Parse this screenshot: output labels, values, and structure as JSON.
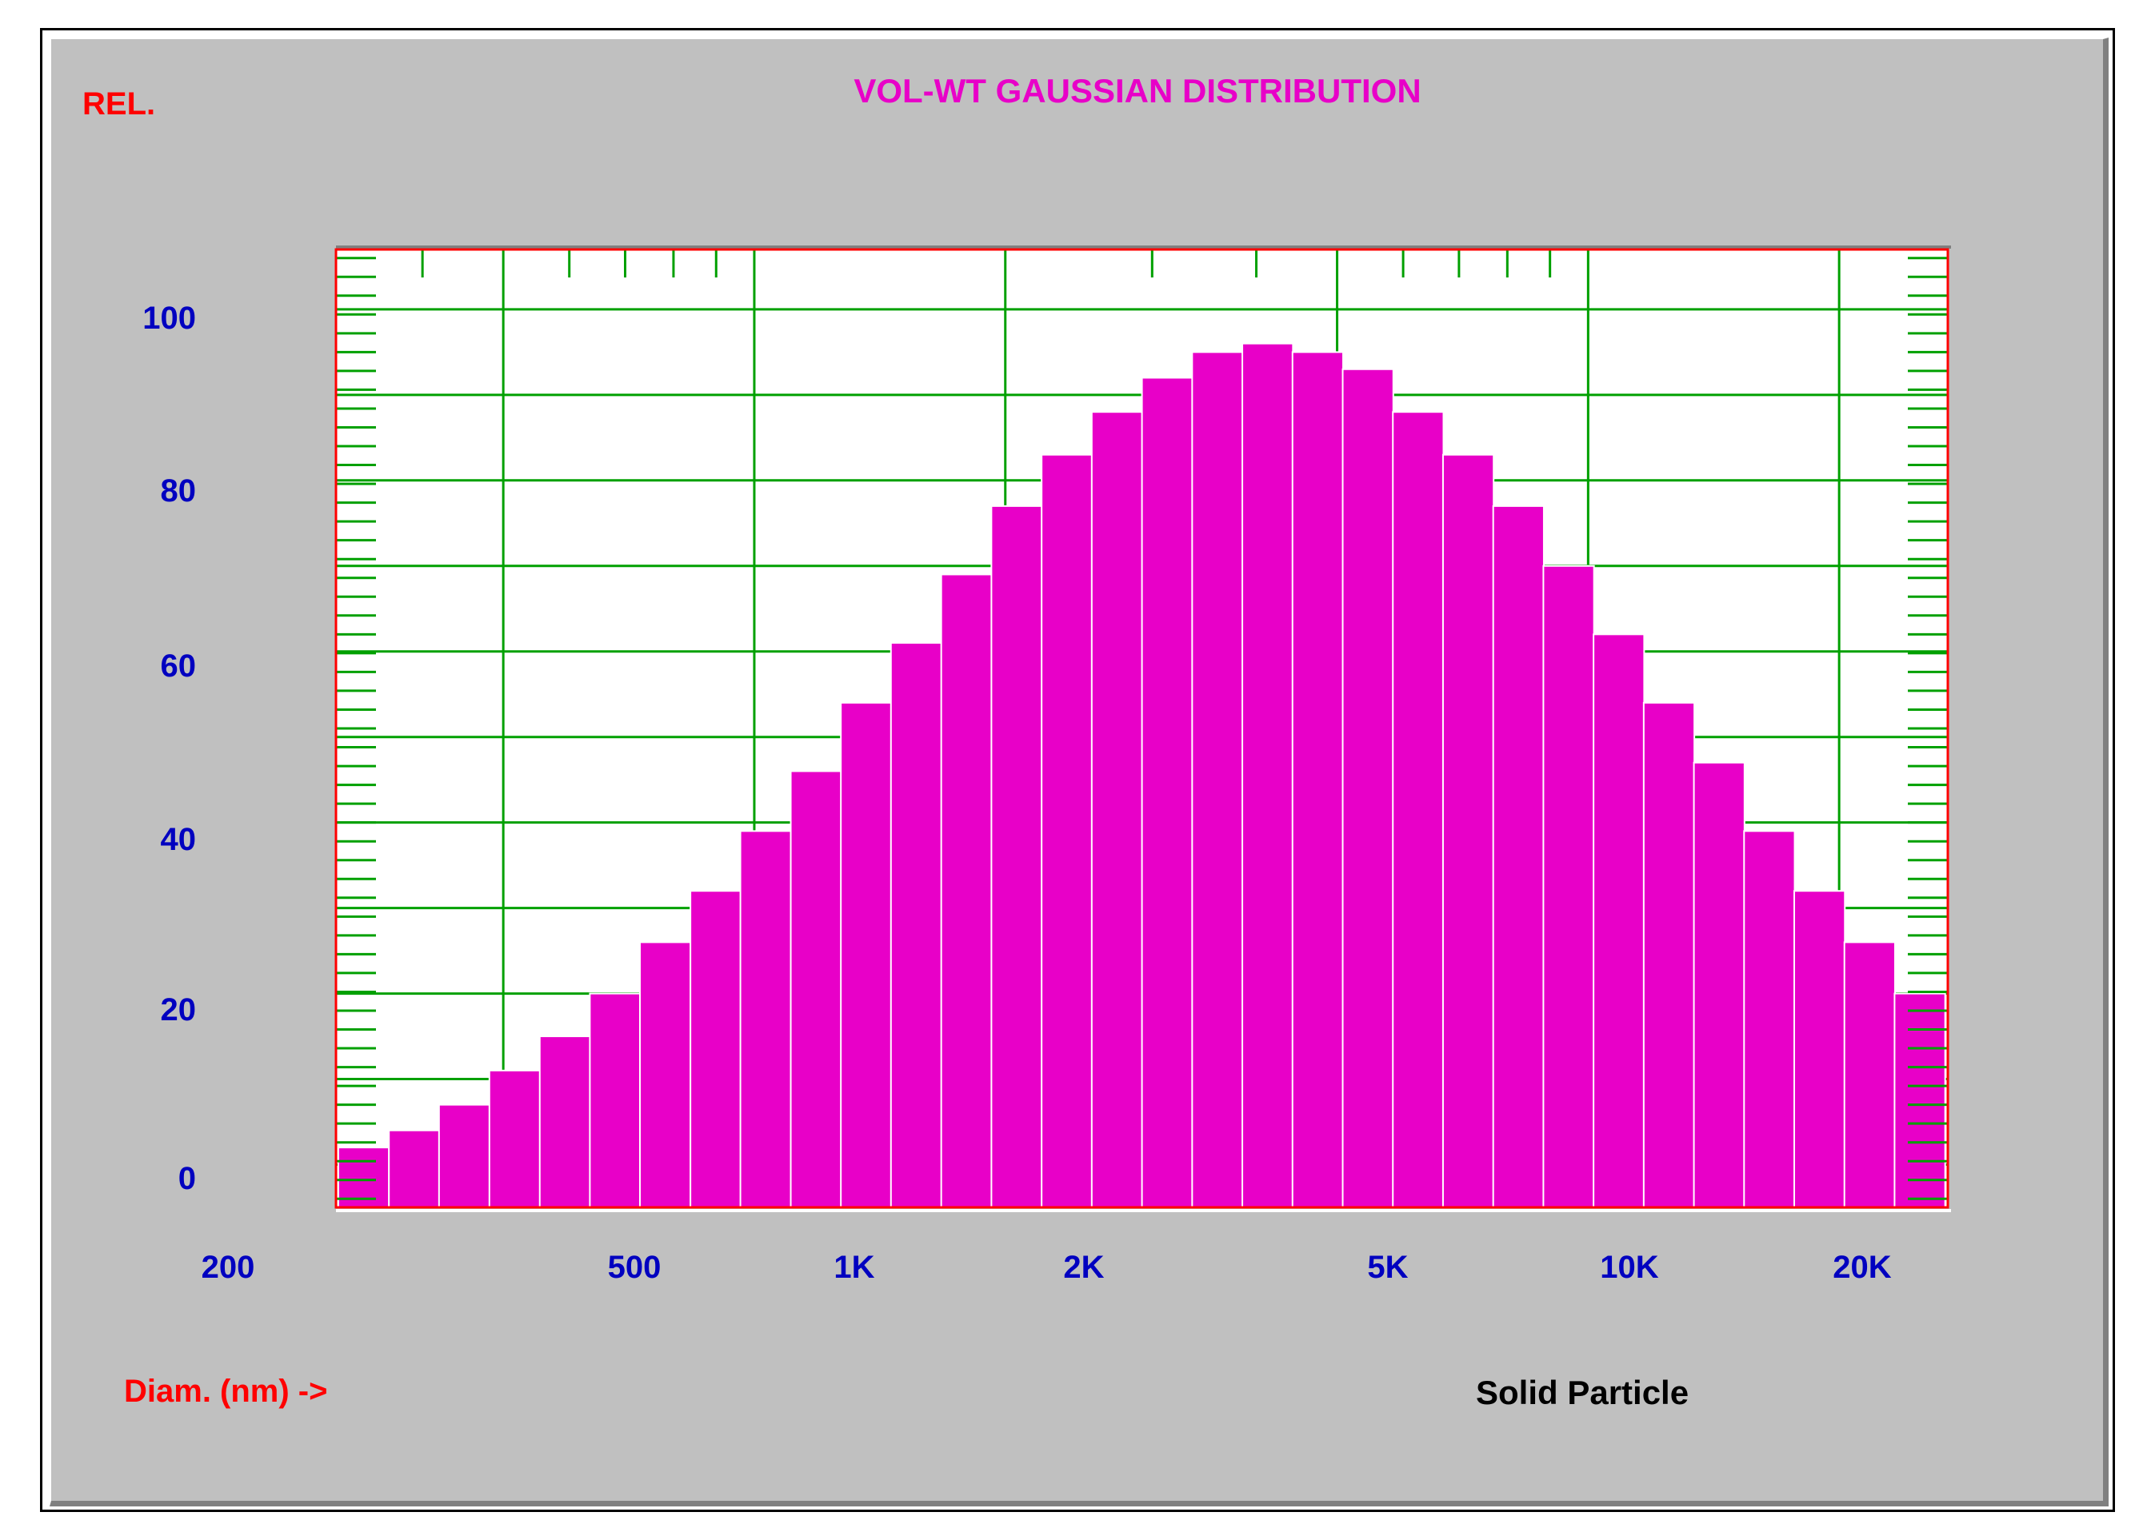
{
  "window": {
    "corner_label": "REL.",
    "x_axis_note": "Diam. (nm) ->",
    "sample_type": "Solid Particle"
  },
  "colors": {
    "background": "#c0c0c0",
    "plot_background": "#ffffff",
    "plot_border": "#ff0000",
    "grid": "#00a000",
    "bars": "#e800c8",
    "title": "#e800c8",
    "tick_labels": "#0000c0",
    "red_labels": "#ff0000"
  },
  "chart_data": {
    "type": "bar",
    "title": "VOL-WT GAUSSIAN DISTRIBUTION",
    "xlabel": "Diam. (nm) ->",
    "ylabel": "REL.",
    "x_scale": "log",
    "xlim": [
      200,
      27000
    ],
    "ylim": [
      -5,
      107
    ],
    "grid": true,
    "y_ticks": [
      0,
      20,
      40,
      60,
      80,
      100
    ],
    "y_tick_labels": [
      "0",
      "20",
      "40",
      "60",
      "80",
      "100"
    ],
    "x_ticks": [
      200,
      500,
      1000,
      2000,
      5000,
      10000,
      20000
    ],
    "x_tick_labels": [
      "200",
      "500",
      "1K",
      "2K",
      "5K",
      "10K",
      "20K"
    ],
    "bar_centers_nm": [
      340,
      391,
      449,
      516,
      593,
      681,
      782,
      899,
      1032,
      1186,
      1362,
      1564,
      1797,
      2064,
      2371,
      2723,
      3128,
      3593,
      4127,
      4740,
      5445,
      6254,
      7183,
      8251,
      9477,
      10885,
      12503,
      14361,
      16495,
      18946,
      21761,
      24994
    ],
    "values": [
      2,
      4,
      7,
      11,
      15,
      20,
      26,
      32,
      39,
      46,
      54,
      61,
      69,
      77,
      83,
      88,
      92,
      95,
      96,
      95,
      93,
      88,
      83,
      77,
      70,
      62,
      54,
      47,
      39,
      32,
      26,
      20
    ]
  }
}
